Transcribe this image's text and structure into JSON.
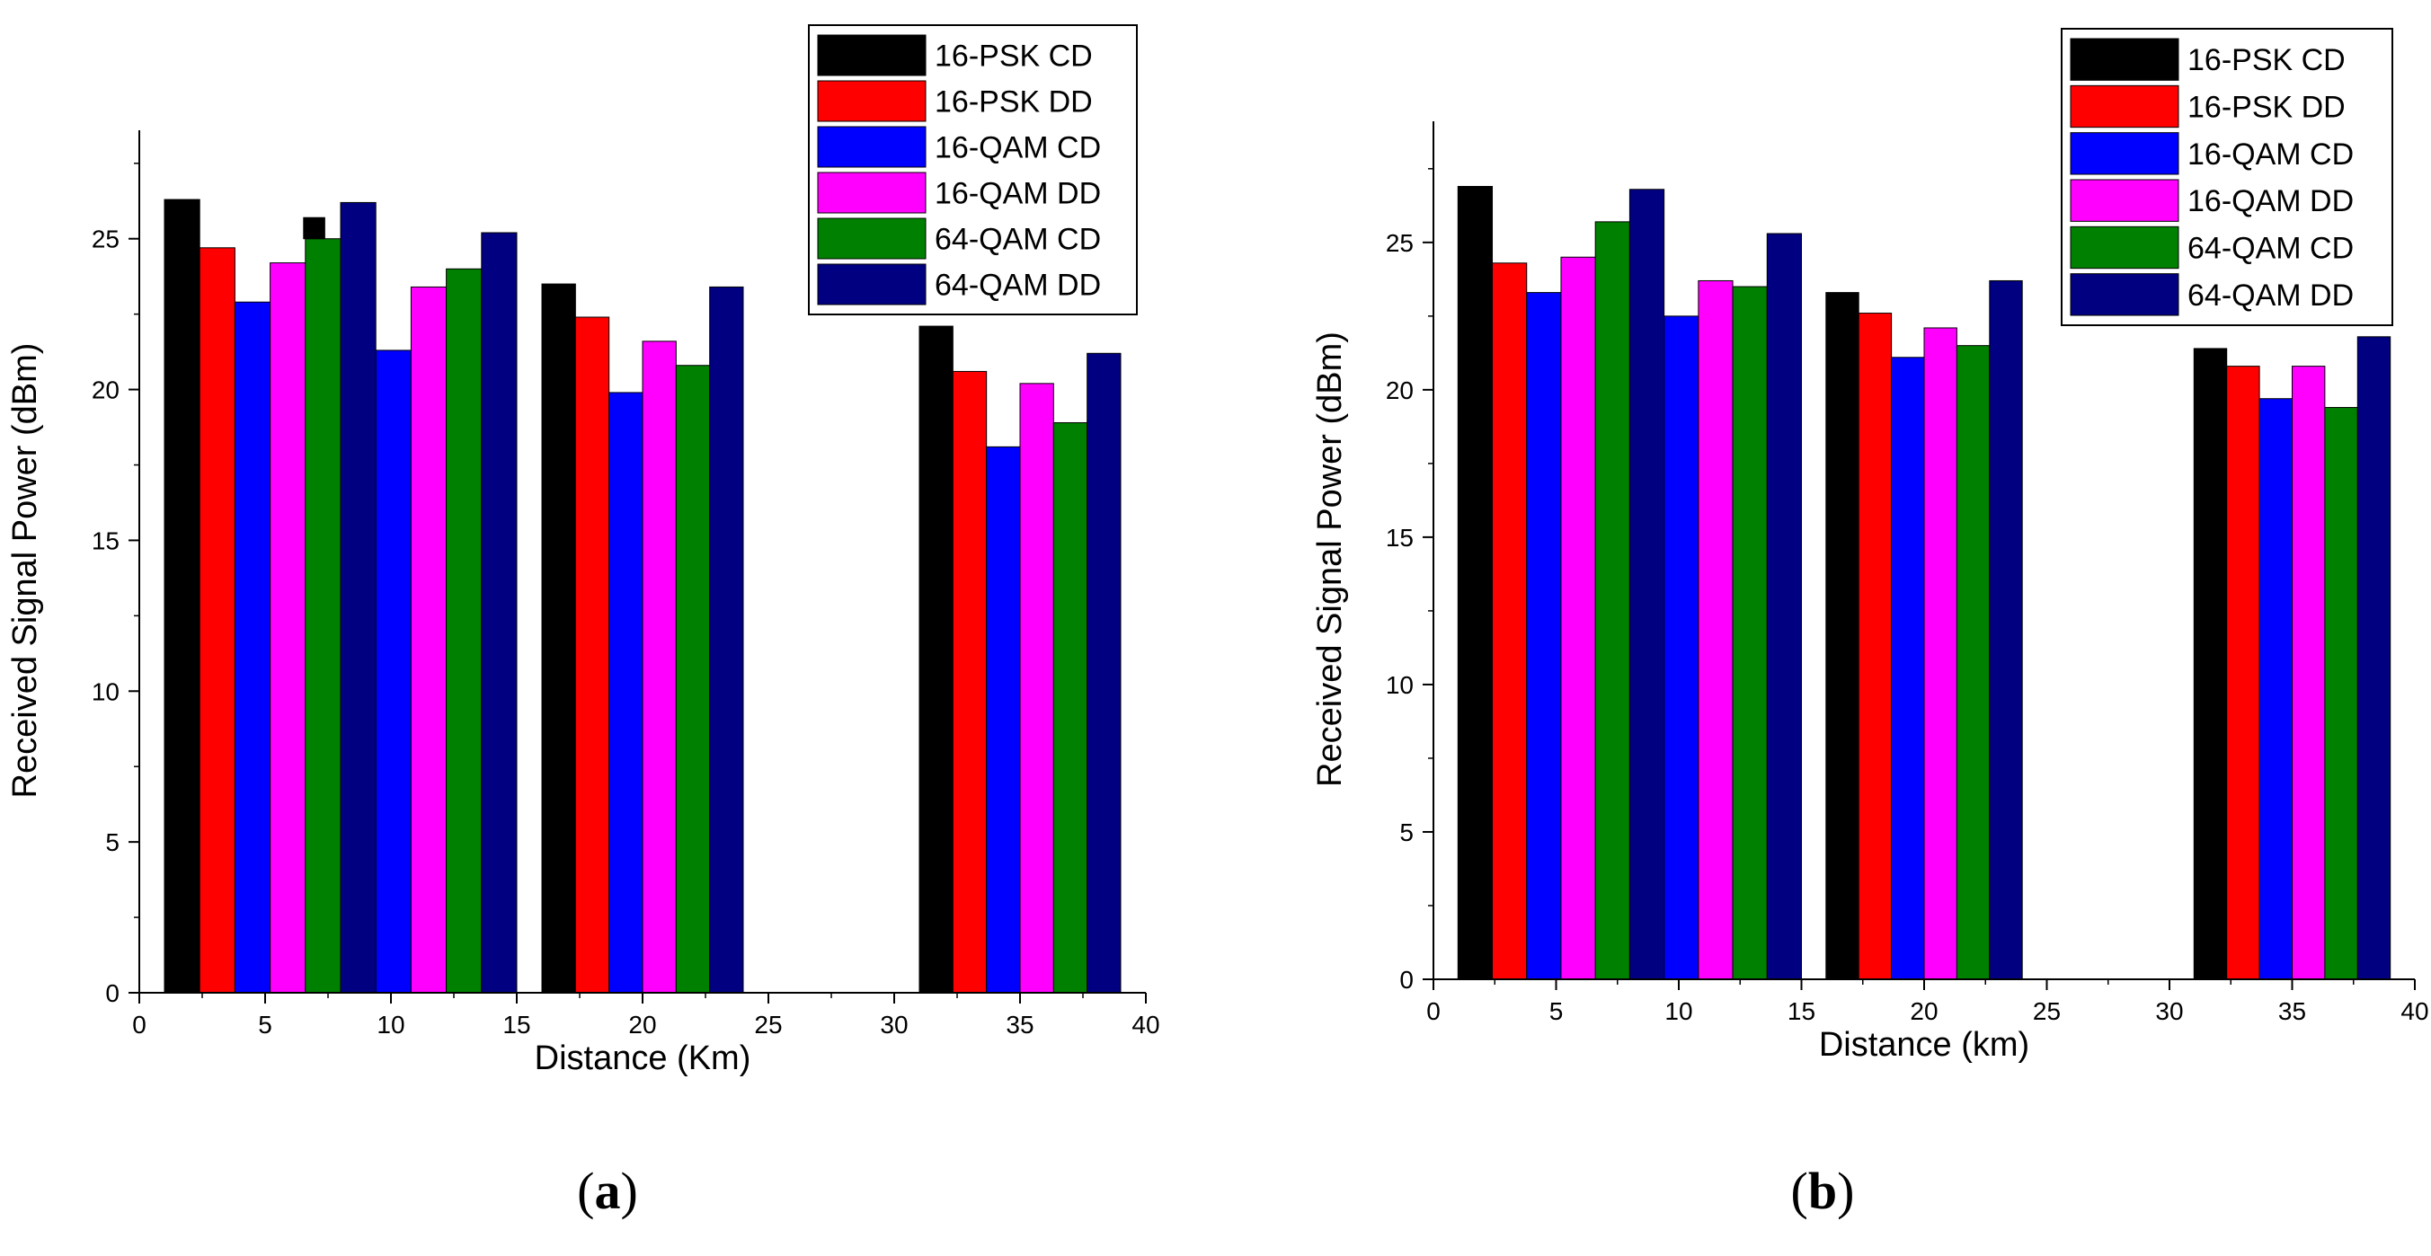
{
  "chart_data": [
    {
      "type": "bar",
      "panel": "a",
      "panel_label": "a",
      "xlabel": "Distance (Km)",
      "ylabel": "Received Signal Power (dBm)",
      "xlim": [
        0,
        40
      ],
      "ylim": [
        0,
        28
      ],
      "xticks": [
        0,
        5,
        10,
        15,
        20,
        25,
        30,
        35,
        40
      ],
      "yticks": [
        0,
        5,
        10,
        15,
        20,
        25
      ],
      "legend_position": "top-right",
      "groups": [
        {
          "x_start": 1,
          "x_end": 15,
          "distance": 10
        },
        {
          "x_start": 16,
          "x_end": 24,
          "distance": 20
        },
        {
          "x_start": 31,
          "x_end": 39,
          "distance": 35
        }
      ],
      "series": [
        {
          "name": "16-PSK CD",
          "color": "#000000",
          "values": [
            26.3,
            23.5,
            22.1
          ]
        },
        {
          "name": "16-PSK DD",
          "color": "#ff0000",
          "values": [
            24.7,
            22.4,
            20.6
          ]
        },
        {
          "name": "16-QAM CD",
          "color": "#0000ff",
          "values": [
            22.9,
            19.9,
            18.1
          ]
        },
        {
          "name": "16-QAM DD",
          "color": "#ff00ff",
          "values": [
            24.2,
            21.6,
            20.2
          ]
        },
        {
          "name": "64-QAM CD",
          "color": "#008000",
          "values": [
            25.0,
            20.8,
            18.9
          ]
        },
        {
          "name": "64-QAM DD",
          "color": "#000080",
          "values": [
            26.2,
            23.4,
            21.2
          ]
        }
      ],
      "extra_bars_first_group": {
        "series_values_second_half": [
          25.7,
          21.3,
          23.4,
          24.0,
          25.2
        ]
      }
    },
    {
      "type": "bar",
      "panel": "b",
      "panel_label": "b",
      "xlabel": "Distance (km)",
      "ylabel": "Received Signal Power (dBm)",
      "xlim": [
        0,
        40
      ],
      "ylim": [
        0,
        28.5
      ],
      "xticks": [
        0,
        5,
        10,
        15,
        20,
        25,
        30,
        35,
        40
      ],
      "yticks": [
        0,
        5,
        10,
        15,
        20,
        25
      ],
      "legend_position": "top-right",
      "groups": [
        {
          "x_start": 1,
          "x_end": 15,
          "distance": 10
        },
        {
          "x_start": 16,
          "x_end": 24,
          "distance": 20
        },
        {
          "x_start": 31,
          "x_end": 39,
          "distance": 35
        }
      ],
      "series": [
        {
          "name": "16-PSK CD",
          "color": "#000000",
          "values": [
            26.9,
            23.3,
            21.4
          ]
        },
        {
          "name": "16-PSK DD",
          "color": "#ff0000",
          "values": [
            24.3,
            22.6,
            20.8
          ]
        },
        {
          "name": "16-QAM CD",
          "color": "#0000ff",
          "values": [
            23.3,
            21.1,
            19.7
          ]
        },
        {
          "name": "16-QAM DD",
          "color": "#ff00ff",
          "values": [
            24.5,
            22.1,
            20.8
          ]
        },
        {
          "name": "64-QAM CD",
          "color": "#008000",
          "values": [
            25.7,
            21.5,
            19.4
          ]
        },
        {
          "name": "64-QAM DD",
          "color": "#000080",
          "values": [
            26.8,
            23.7,
            21.8
          ]
        }
      ],
      "extra_bars_first_group": {
        "series_values_second_half": [
          25.2,
          22.5,
          23.7,
          23.5,
          25.3
        ]
      }
    }
  ]
}
